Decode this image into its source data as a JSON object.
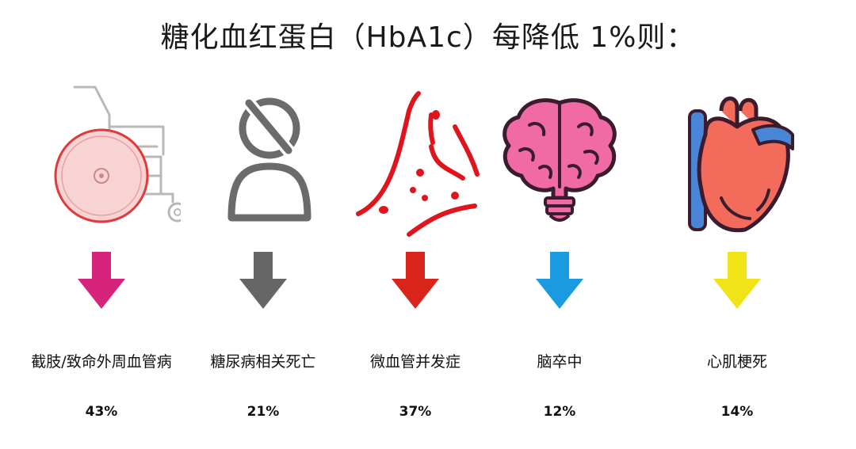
{
  "title": "糖化血红蛋白（HbA1c）每降低 1%则：",
  "items": [
    {
      "icon": "wheelchair-icon",
      "label": "截肢/致命外周血管病",
      "value": "43%",
      "arrow_color": "#d6247c"
    },
    {
      "icon": "person-death-icon",
      "label": "糖尿病相关死亡",
      "value": "21%",
      "arrow_color": "#666666"
    },
    {
      "icon": "blood-vessel-icon",
      "label": "微血管并发症",
      "value": "37%",
      "arrow_color": "#d9241c"
    },
    {
      "icon": "brain-icon",
      "label": "脑卒中",
      "value": "12%",
      "arrow_color": "#1a9be0"
    },
    {
      "icon": "heart-icon",
      "label": "心肌梗死",
      "value": "14%",
      "arrow_color": "#f0e418"
    }
  ]
}
